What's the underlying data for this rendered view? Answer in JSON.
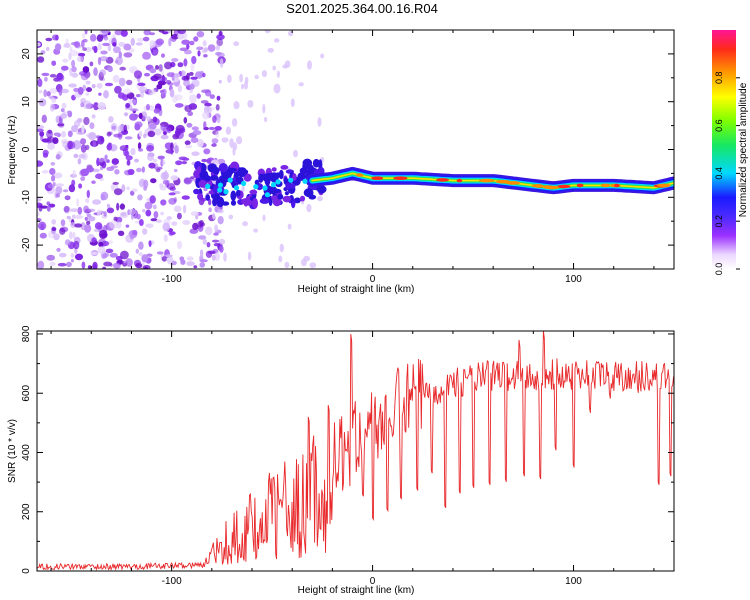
{
  "title": "S201.2025.364.00.16.R04",
  "chart_data": [
    {
      "type": "heatmap",
      "name": "spectrogram",
      "xlabel": "Height of straight line (km)",
      "ylabel": "Frequency (Hz)",
      "xlim": [
        -167,
        150
      ],
      "ylim": [
        -25,
        25
      ],
      "xticks": [
        -100,
        0,
        100
      ],
      "yticks": [
        -20,
        -10,
        0,
        10,
        20
      ],
      "colorbar": {
        "label": "Normalized spectral amplitude",
        "range": [
          0,
          1
        ],
        "ticks": [
          "0.0",
          "0.2",
          "0.4",
          "0.6",
          "0.8"
        ],
        "tick_values": [
          0,
          0.2,
          0.4,
          0.6,
          0.8
        ]
      },
      "noise_region_x": [
        -167,
        -75
      ],
      "signal_track": {
        "x": [
          -88,
          -80,
          -70,
          -60,
          -50,
          -40,
          -30,
          -20,
          -10,
          0,
          10,
          20,
          40,
          60,
          80,
          90,
          100,
          120,
          140,
          150
        ],
        "freq_hz": [
          -6.5,
          -7.5,
          -7.5,
          -8,
          -8,
          -7.5,
          -6.5,
          -6,
          -5,
          -6,
          -6,
          -6,
          -6.5,
          -6.5,
          -7.5,
          -8,
          -7.5,
          -7.5,
          -8,
          -7
        ]
      }
    },
    {
      "type": "line",
      "name": "snr",
      "xlabel": "Height of straight line (km)",
      "ylabel": "SNR (10 * v/v)",
      "xlim": [
        -167,
        150
      ],
      "ylim": [
        0,
        810
      ],
      "xticks": [
        -100,
        0,
        100
      ],
      "yticks": [
        0,
        200,
        400,
        600,
        800
      ],
      "color": "#e8282a",
      "envelope": {
        "x": [
          -167,
          -120,
          -85,
          -80,
          -70,
          -60,
          -50,
          -40,
          -30,
          -20,
          -10,
          0,
          10,
          20,
          30,
          40,
          60,
          80,
          100,
          120,
          140,
          150
        ],
        "y": [
          15,
          15,
          20,
          60,
          130,
          180,
          220,
          250,
          300,
          360,
          430,
          480,
          540,
          580,
          610,
          640,
          660,
          660,
          665,
          660,
          660,
          660
        ]
      },
      "spikes": [
        {
          "x": -11,
          "y": 800
        },
        {
          "x": -22,
          "y": 560
        },
        {
          "x": -32,
          "y": 520
        },
        {
          "x": 73,
          "y": 780
        },
        {
          "x": 85,
          "y": 810
        }
      ],
      "dropouts": [
        {
          "x": -5,
          "y": 260
        },
        {
          "x": 0,
          "y": 180
        },
        {
          "x": 7,
          "y": 210
        },
        {
          "x": 14,
          "y": 250
        },
        {
          "x": 22,
          "y": 280
        },
        {
          "x": 29,
          "y": 340
        },
        {
          "x": 36,
          "y": 220
        },
        {
          "x": 43,
          "y": 270
        },
        {
          "x": 50,
          "y": 290
        },
        {
          "x": 58,
          "y": 300
        },
        {
          "x": 66,
          "y": 310
        },
        {
          "x": 75,
          "y": 330
        },
        {
          "x": 83,
          "y": 320
        },
        {
          "x": 91,
          "y": 420
        },
        {
          "x": 100,
          "y": 360
        },
        {
          "x": 108,
          "y": 550
        },
        {
          "x": 118,
          "y": 600
        },
        {
          "x": 132,
          "y": 620
        },
        {
          "x": 142,
          "y": 300
        },
        {
          "x": 148,
          "y": 330
        }
      ]
    }
  ]
}
